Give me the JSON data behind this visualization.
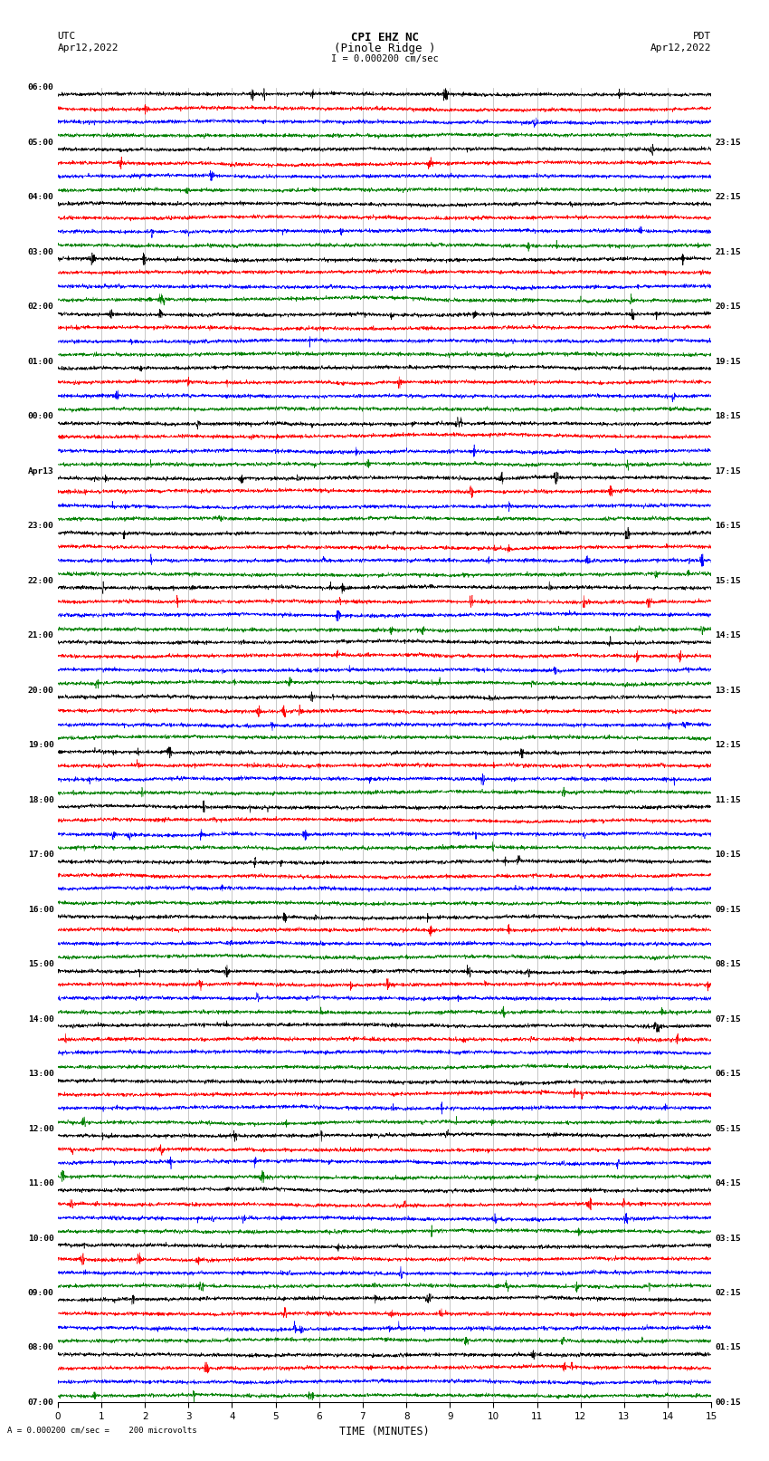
{
  "title_line1": "CPI EHZ NC",
  "title_line2": "(Pinole Ridge )",
  "scale_label": "I = 0.000200 cm/sec",
  "footer_label": "= 0.000200 cm/sec =    200 microvolts",
  "footer_prefix": "A",
  "utc_label": "UTC",
  "utc_date": "Apr12,2022",
  "pdt_label": "PDT",
  "pdt_date": "Apr12,2022",
  "xlabel": "TIME (MINUTES)",
  "background_color": "#ffffff",
  "trace_colors": [
    "black",
    "red",
    "blue",
    "green"
  ],
  "left_times": [
    "07:00",
    "08:00",
    "09:00",
    "10:00",
    "11:00",
    "12:00",
    "13:00",
    "14:00",
    "15:00",
    "16:00",
    "17:00",
    "18:00",
    "19:00",
    "20:00",
    "21:00",
    "22:00",
    "23:00",
    "Apr13",
    "00:00",
    "01:00",
    "02:00",
    "03:00",
    "04:00",
    "05:00",
    "06:00"
  ],
  "right_times": [
    "00:15",
    "01:15",
    "02:15",
    "03:15",
    "04:15",
    "05:15",
    "06:15",
    "07:15",
    "08:15",
    "09:15",
    "10:15",
    "11:15",
    "12:15",
    "13:15",
    "14:15",
    "15:15",
    "16:15",
    "17:15",
    "18:15",
    "19:15",
    "20:15",
    "21:15",
    "22:15",
    "23:15"
  ],
  "n_rows": 24,
  "traces_per_row": 4,
  "xmin": 0,
  "xmax": 15,
  "seed": 42,
  "vgrid_minutes": [
    1,
    2,
    3,
    4,
    5,
    6,
    7,
    8,
    9,
    10,
    11,
    12,
    13,
    14
  ]
}
